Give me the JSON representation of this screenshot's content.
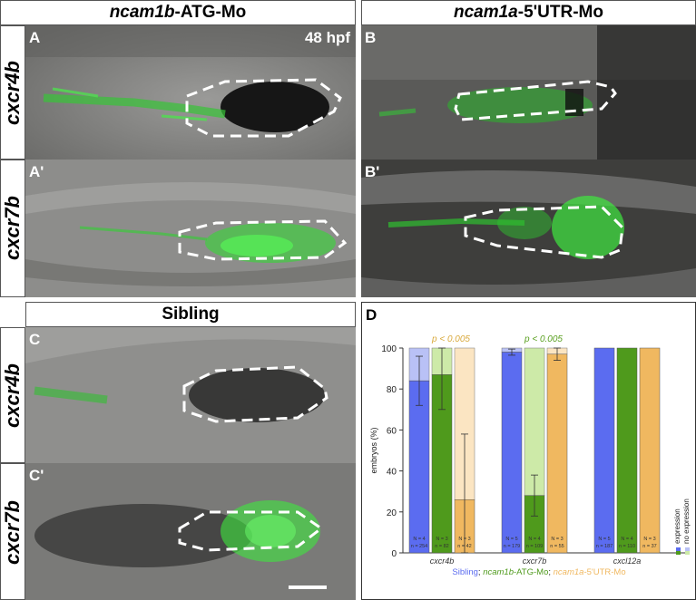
{
  "columns": {
    "left": {
      "gene": "ncam1b",
      "suffix": "-ATG-Mo"
    },
    "right": {
      "gene": "ncam1a",
      "suffix": "-5'UTR-Mo"
    },
    "sibling": "Sibling"
  },
  "rows": {
    "cxcr4b": "cxcr4b",
    "cxcr7b": "cxcr7b"
  },
  "panels": {
    "A": "A",
    "A2": "A'",
    "B": "B",
    "B2": "B'",
    "C": "C",
    "C2": "C'",
    "D": "D"
  },
  "stage": "48 hpf",
  "colors": {
    "sibling": "#5b6cf0",
    "atg": "#4f9a1c",
    "utr": "#f0b860",
    "sig": "#e8b43c",
    "sig2": "#5aa020"
  },
  "chart_data": {
    "type": "bar",
    "ylabel": "embryos (%)",
    "ylim": [
      0,
      100
    ],
    "yticks": [
      0,
      20,
      40,
      60,
      80,
      100
    ],
    "groups": [
      {
        "gene": "cxcr4b",
        "pvalue": "p < 0.005",
        "pcolor": "#d9a93c",
        "bars": [
          {
            "cond": "Sibling",
            "value": 84,
            "err": 12,
            "N": "N = 4",
            "n": "n = 254"
          },
          {
            "cond": "ncam1b-ATG-Mo",
            "value": 87,
            "err": 17,
            "N": "N = 3",
            "n": "n = 82"
          },
          {
            "cond": "ncam1a-5'UTR-Mo",
            "value": 26,
            "err": 32,
            "N": "N = 3",
            "n": "n = 42"
          }
        ]
      },
      {
        "gene": "cxcr7b",
        "pvalue": "p < 0.005",
        "pcolor": "#5aa020",
        "bars": [
          {
            "cond": "Sibling",
            "value": 98,
            "err": 1.5,
            "N": "N = 5",
            "n": "n = 179"
          },
          {
            "cond": "ncam1b-ATG-Mo",
            "value": 28,
            "err": 10,
            "N": "N = 4",
            "n": "n = 109"
          },
          {
            "cond": "ncam1a-5'UTR-Mo",
            "value": 97,
            "err": 3,
            "N": "N = 3",
            "n": "n = 55"
          }
        ]
      },
      {
        "gene": "cxcl12a",
        "pvalue": "",
        "bars": [
          {
            "cond": "Sibling",
            "value": 100,
            "err": 0,
            "N": "N = 5",
            "n": "n = 187"
          },
          {
            "cond": "ncam1b-ATG-Mo",
            "value": 100,
            "err": 0,
            "N": "N = 4",
            "n": "n = 110"
          },
          {
            "cond": "ncam1a-5'UTR-Mo",
            "value": 100,
            "err": 0,
            "N": "N = 3",
            "n": "n = 37"
          }
        ]
      }
    ],
    "legend": {
      "expression": "expression",
      "no_expression": "no expression"
    },
    "xlegend": [
      "Sibling",
      "; ",
      "ncam1b",
      "-ATG-Mo",
      "; ",
      "ncam1a",
      "-5'UTR-Mo"
    ]
  }
}
